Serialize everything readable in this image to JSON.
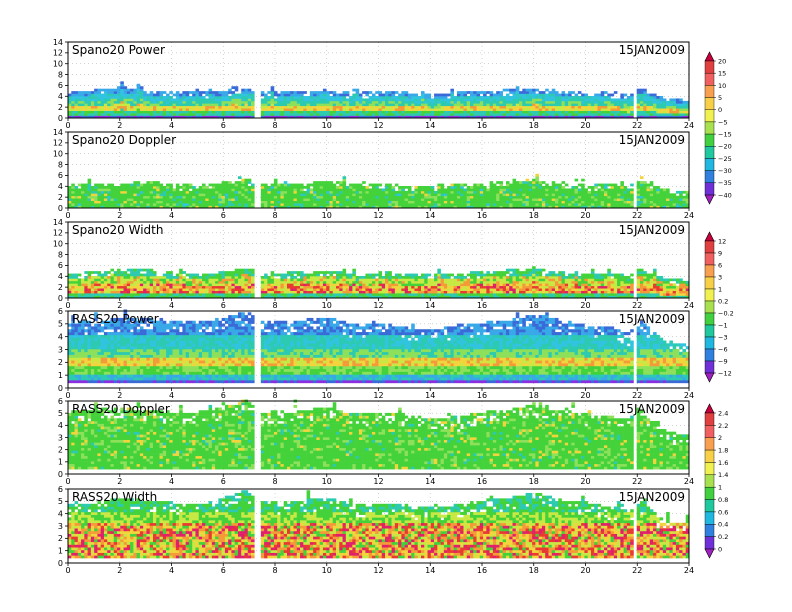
{
  "chart_data": [
    {
      "type": "heatmap",
      "title": "Spano20 Power",
      "date": "15JAN2009",
      "xlabel": "",
      "ylabel": "",
      "xlim": [
        0,
        24
      ],
      "ylim": [
        0,
        14
      ],
      "xticks": [
        0,
        2,
        4,
        6,
        8,
        10,
        12,
        14,
        16,
        18,
        20,
        22,
        24
      ],
      "yticks": [
        0,
        2,
        4,
        6,
        8,
        10,
        12,
        14
      ],
      "grid": true,
      "top_height_profile": [
        [
          0,
          4.5
        ],
        [
          1,
          5.0
        ],
        [
          2,
          5.5
        ],
        [
          3,
          5.0
        ],
        [
          4,
          4.6
        ],
        [
          5,
          4.5
        ],
        [
          6,
          4.8
        ],
        [
          6.8,
          5.5
        ],
        [
          7.5,
          4.5
        ],
        [
          9,
          4.8
        ],
        [
          10,
          5.0
        ],
        [
          11,
          4.4
        ],
        [
          12,
          4.8
        ],
        [
          13,
          4.6
        ],
        [
          14,
          4.2
        ],
        [
          15,
          4.5
        ],
        [
          16,
          4.8
        ],
        [
          17,
          5.0
        ],
        [
          18,
          5.4
        ],
        [
          19,
          4.8
        ],
        [
          20,
          4.4
        ],
        [
          21,
          4.6
        ],
        [
          21.6,
          4.0
        ],
        [
          22,
          5.5
        ],
        [
          23,
          3.5
        ],
        [
          24,
          3.0
        ]
      ],
      "colorbar": {
        "ticks": [
          "20",
          "15",
          "10",
          "5",
          "0",
          "−5",
          "−15",
          "−20",
          "−25",
          "−30",
          "−35",
          "−40"
        ],
        "colors": [
          "#c8003c",
          "#e04040",
          "#f06060",
          "#f8a050",
          "#f8d048",
          "#f0f050",
          "#a8e050",
          "#40d040",
          "#20c8a0",
          "#20b8e0",
          "#3080e0",
          "#7030d8",
          "#a020c0"
        ]
      }
    },
    {
      "type": "heatmap",
      "title": "Spano20 Doppler",
      "date": "15JAN2009",
      "xlabel": "",
      "ylabel": "",
      "xlim": [
        0,
        24
      ],
      "ylim": [
        0,
        14
      ],
      "xticks": [
        0,
        2,
        4,
        6,
        8,
        10,
        12,
        14,
        16,
        18,
        20,
        22,
        24
      ],
      "yticks": [
        0,
        2,
        4,
        6,
        8,
        10,
        12,
        14
      ],
      "grid": true,
      "top_height_profile": [
        [
          0,
          4.0
        ],
        [
          1,
          4.5
        ],
        [
          2,
          4.2
        ],
        [
          3,
          4.8
        ],
        [
          4,
          4.2
        ],
        [
          5,
          4.0
        ],
        [
          6,
          4.5
        ],
        [
          6.8,
          5.2
        ],
        [
          7.5,
          4.2
        ],
        [
          9,
          4.4
        ],
        [
          10,
          4.8
        ],
        [
          11,
          4.2
        ],
        [
          12,
          4.4
        ],
        [
          13,
          4.0
        ],
        [
          14,
          4.0
        ],
        [
          15,
          4.2
        ],
        [
          16,
          4.4
        ],
        [
          17,
          4.8
        ],
        [
          18,
          5.0
        ],
        [
          19,
          4.4
        ],
        [
          20,
          4.0
        ],
        [
          21,
          4.2
        ],
        [
          21.6,
          3.8
        ],
        [
          22,
          5.0
        ],
        [
          23,
          3.2
        ],
        [
          24,
          2.8
        ]
      ],
      "colorbar": null
    },
    {
      "type": "heatmap",
      "title": "Spano20 Width",
      "date": "15JAN2009",
      "xlabel": "",
      "ylabel": "",
      "xlim": [
        0,
        24
      ],
      "ylim": [
        0,
        14
      ],
      "xticks": [
        0,
        2,
        4,
        6,
        8,
        10,
        12,
        14,
        16,
        18,
        20,
        22,
        24
      ],
      "yticks": [
        0,
        2,
        4,
        6,
        8,
        10,
        12,
        14
      ],
      "grid": true,
      "top_height_profile": [
        [
          0,
          4.2
        ],
        [
          1,
          4.8
        ],
        [
          2,
          5.0
        ],
        [
          3,
          5.2
        ],
        [
          4,
          4.4
        ],
        [
          5,
          4.2
        ],
        [
          6,
          4.6
        ],
        [
          6.8,
          5.4
        ],
        [
          7.5,
          4.4
        ],
        [
          9,
          4.6
        ],
        [
          10,
          4.8
        ],
        [
          11,
          4.2
        ],
        [
          12,
          4.6
        ],
        [
          13,
          4.4
        ],
        [
          14,
          4.2
        ],
        [
          15,
          4.4
        ],
        [
          16,
          4.6
        ],
        [
          17,
          5.0
        ],
        [
          18,
          5.2
        ],
        [
          19,
          4.6
        ],
        [
          20,
          4.2
        ],
        [
          21,
          4.4
        ],
        [
          21.6,
          3.8
        ],
        [
          22,
          5.2
        ],
        [
          23,
          3.4
        ],
        [
          24,
          3.0
        ]
      ],
      "colorbar": {
        "ticks": [
          "12",
          "9",
          "6",
          "3",
          "1",
          "0.2",
          "−0.2",
          "−1",
          "−3",
          "−6",
          "−9",
          "−12"
        ],
        "colors": [
          "#c8003c",
          "#e04040",
          "#f06060",
          "#f8a050",
          "#f8d048",
          "#f0f050",
          "#a8e050",
          "#40d040",
          "#20c8a0",
          "#20b8e0",
          "#3080e0",
          "#7030d8",
          "#a020c0"
        ]
      }
    },
    {
      "type": "heatmap",
      "title": "RASS20 Power",
      "date": "15JAN2009",
      "xlabel": "",
      "ylabel": "",
      "xlim": [
        0,
        24
      ],
      "ylim": [
        0,
        6
      ],
      "xticks": [
        0,
        2,
        4,
        6,
        8,
        10,
        12,
        14,
        16,
        18,
        20,
        22,
        24
      ],
      "yticks": [
        0,
        1,
        2,
        3,
        4,
        5,
        6
      ],
      "grid": true,
      "top_height_profile": [
        [
          0,
          5.2
        ],
        [
          1,
          5.0
        ],
        [
          2,
          5.4
        ],
        [
          3,
          5.3
        ],
        [
          4,
          5.2
        ],
        [
          5,
          5.0
        ],
        [
          6,
          5.4
        ],
        [
          6.8,
          5.9
        ],
        [
          7.5,
          5.0
        ],
        [
          9,
          5.2
        ],
        [
          10,
          5.4
        ],
        [
          11,
          4.8
        ],
        [
          12,
          5.0
        ],
        [
          13,
          4.6
        ],
        [
          14,
          4.4
        ],
        [
          15,
          4.8
        ],
        [
          16,
          5.0
        ],
        [
          17,
          5.2
        ],
        [
          18,
          5.6
        ],
        [
          19,
          5.2
        ],
        [
          20,
          4.8
        ],
        [
          21,
          4.6
        ],
        [
          21.6,
          4.2
        ],
        [
          22,
          5.3
        ],
        [
          23,
          3.6
        ],
        [
          24,
          3.2
        ]
      ],
      "colorbar": null
    },
    {
      "type": "heatmap",
      "title": "RASS20 Doppler",
      "date": "15JAN2009",
      "xlabel": "",
      "ylabel": "",
      "xlim": [
        0,
        24
      ],
      "ylim": [
        0,
        6
      ],
      "xticks": [
        0,
        2,
        4,
        6,
        8,
        10,
        12,
        14,
        16,
        18,
        20,
        22,
        24
      ],
      "yticks": [
        0,
        1,
        2,
        3,
        4,
        5,
        6
      ],
      "grid": true,
      "top_height_profile": [
        [
          0,
          5.0
        ],
        [
          1,
          5.2
        ],
        [
          2,
          5.4
        ],
        [
          3,
          5.2
        ],
        [
          4,
          5.0
        ],
        [
          5,
          5.0
        ],
        [
          6,
          5.5
        ],
        [
          6.8,
          6.0
        ],
        [
          7.5,
          5.0
        ],
        [
          9,
          5.2
        ],
        [
          10,
          5.3
        ],
        [
          11,
          4.8
        ],
        [
          12,
          5.0
        ],
        [
          13,
          4.8
        ],
        [
          14,
          4.4
        ],
        [
          15,
          4.6
        ],
        [
          16,
          5.0
        ],
        [
          17,
          5.2
        ],
        [
          18,
          5.8
        ],
        [
          19,
          5.2
        ],
        [
          20,
          4.8
        ],
        [
          21,
          4.6
        ],
        [
          21.6,
          4.4
        ],
        [
          22,
          5.2
        ],
        [
          23,
          3.5
        ],
        [
          24,
          3.0
        ]
      ],
      "colorbar": {
        "ticks": [
          "2.4",
          "2.2",
          "2",
          "1.8",
          "1.6",
          "1.4",
          "1",
          "0.8",
          "0.6",
          "0.4",
          "0.2",
          "0"
        ],
        "colors": [
          "#c8003c",
          "#e04040",
          "#f06060",
          "#f8a050",
          "#f8d048",
          "#f0f050",
          "#a8e050",
          "#40d040",
          "#20c8a0",
          "#20b8e0",
          "#3080e0",
          "#7030d8",
          "#a020c0"
        ]
      }
    },
    {
      "type": "heatmap",
      "title": "RASS20 Width",
      "date": "15JAN2009",
      "xlabel": "",
      "ylabel": "",
      "xlim": [
        0,
        24
      ],
      "ylim": [
        0,
        6
      ],
      "xticks": [
        0,
        2,
        4,
        6,
        8,
        10,
        12,
        14,
        16,
        18,
        20,
        22,
        24
      ],
      "yticks": [
        0,
        1,
        2,
        3,
        4,
        5,
        6
      ],
      "grid": true,
      "top_height_profile": [
        [
          0,
          4.6
        ],
        [
          1,
          4.8
        ],
        [
          2,
          5.2
        ],
        [
          3,
          5.0
        ],
        [
          4,
          4.8
        ],
        [
          5,
          4.6
        ],
        [
          6,
          5.2
        ],
        [
          6.8,
          5.8
        ],
        [
          7.5,
          4.8
        ],
        [
          9,
          5.0
        ],
        [
          10,
          5.2
        ],
        [
          11,
          4.6
        ],
        [
          12,
          4.8
        ],
        [
          13,
          4.6
        ],
        [
          14,
          4.4
        ],
        [
          15,
          4.6
        ],
        [
          16,
          5.0
        ],
        [
          17,
          5.2
        ],
        [
          18,
          5.6
        ],
        [
          19,
          5.0
        ],
        [
          20,
          4.8
        ],
        [
          21,
          4.4
        ],
        [
          21.6,
          4.2
        ],
        [
          22,
          5.0
        ],
        [
          23,
          3.4
        ],
        [
          24,
          3.0
        ]
      ],
      "colorbar": null
    }
  ]
}
